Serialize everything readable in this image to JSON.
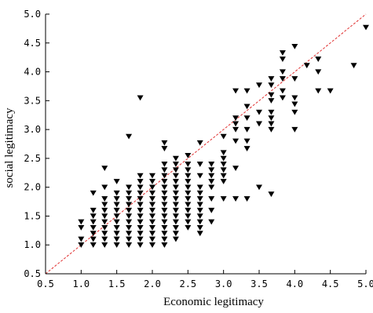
{
  "chart_data": {
    "type": "scatter",
    "xlabel": "Economic legitimacy",
    "ylabel": "social legitimacy",
    "xlim": [
      0.5,
      5.0
    ],
    "ylim": [
      0.5,
      5.0
    ],
    "xticks": [
      "0.5",
      "1.0",
      "1.5",
      "2.0",
      "2.5",
      "3.0",
      "3.5",
      "4.0",
      "4.5",
      "5.0"
    ],
    "yticks": [
      "0.5",
      "1.0",
      "1.5",
      "2.0",
      "2.5",
      "3.0",
      "3.5",
      "4.0",
      "4.5",
      "5.0"
    ],
    "marker": "down-triangle",
    "marker_color": "#000000",
    "reference_line": {
      "from": [
        0.5,
        0.5
      ],
      "to": [
        5.0,
        5.0
      ],
      "style": "dashed",
      "color": "#e03030"
    },
    "grid": false,
    "series": [
      {
        "points": [
          [
            1.0,
            1.0
          ],
          [
            1.0,
            1.1
          ],
          [
            1.0,
            1.3
          ],
          [
            1.0,
            1.4
          ],
          [
            1.17,
            1.0
          ],
          [
            1.17,
            1.1
          ],
          [
            1.17,
            1.2
          ],
          [
            1.17,
            1.3
          ],
          [
            1.17,
            1.4
          ],
          [
            1.17,
            1.5
          ],
          [
            1.17,
            1.6
          ],
          [
            1.17,
            1.9
          ],
          [
            1.33,
            1.0
          ],
          [
            1.33,
            1.1
          ],
          [
            1.33,
            1.2
          ],
          [
            1.33,
            1.3
          ],
          [
            1.33,
            1.4
          ],
          [
            1.33,
            1.5
          ],
          [
            1.33,
            1.6
          ],
          [
            1.33,
            1.7
          ],
          [
            1.33,
            1.8
          ],
          [
            1.33,
            2.0
          ],
          [
            1.33,
            2.33
          ],
          [
            1.5,
            1.0
          ],
          [
            1.5,
            1.1
          ],
          [
            1.5,
            1.2
          ],
          [
            1.5,
            1.3
          ],
          [
            1.5,
            1.4
          ],
          [
            1.5,
            1.5
          ],
          [
            1.5,
            1.6
          ],
          [
            1.5,
            1.7
          ],
          [
            1.5,
            1.8
          ],
          [
            1.5,
            1.9
          ],
          [
            1.5,
            2.1
          ],
          [
            1.67,
            1.0
          ],
          [
            1.67,
            1.1
          ],
          [
            1.67,
            1.2
          ],
          [
            1.67,
            1.3
          ],
          [
            1.67,
            1.4
          ],
          [
            1.67,
            1.5
          ],
          [
            1.67,
            1.6
          ],
          [
            1.67,
            1.7
          ],
          [
            1.67,
            1.8
          ],
          [
            1.67,
            1.9
          ],
          [
            1.67,
            2.0
          ],
          [
            1.67,
            2.88
          ],
          [
            1.83,
            1.0
          ],
          [
            1.83,
            1.1
          ],
          [
            1.83,
            1.2
          ],
          [
            1.83,
            1.3
          ],
          [
            1.83,
            1.4
          ],
          [
            1.83,
            1.5
          ],
          [
            1.83,
            1.6
          ],
          [
            1.83,
            1.7
          ],
          [
            1.83,
            1.8
          ],
          [
            1.83,
            1.9
          ],
          [
            1.83,
            2.0
          ],
          [
            1.83,
            2.1
          ],
          [
            1.83,
            2.2
          ],
          [
            1.83,
            3.55
          ],
          [
            2.0,
            1.0
          ],
          [
            2.0,
            1.1
          ],
          [
            2.0,
            1.2
          ],
          [
            2.0,
            1.3
          ],
          [
            2.0,
            1.4
          ],
          [
            2.0,
            1.5
          ],
          [
            2.0,
            1.6
          ],
          [
            2.0,
            1.7
          ],
          [
            2.0,
            1.8
          ],
          [
            2.0,
            1.9
          ],
          [
            2.0,
            2.0
          ],
          [
            2.0,
            2.1
          ],
          [
            2.0,
            2.2
          ],
          [
            2.17,
            1.0
          ],
          [
            2.17,
            1.1
          ],
          [
            2.17,
            1.2
          ],
          [
            2.17,
            1.3
          ],
          [
            2.17,
            1.4
          ],
          [
            2.17,
            1.5
          ],
          [
            2.17,
            1.6
          ],
          [
            2.17,
            1.7
          ],
          [
            2.17,
            1.8
          ],
          [
            2.17,
            1.9
          ],
          [
            2.17,
            2.0
          ],
          [
            2.17,
            2.1
          ],
          [
            2.17,
            2.2
          ],
          [
            2.17,
            2.3
          ],
          [
            2.17,
            2.4
          ],
          [
            2.17,
            2.67
          ],
          [
            2.17,
            2.77
          ],
          [
            2.33,
            1.1
          ],
          [
            2.33,
            1.2
          ],
          [
            2.33,
            1.3
          ],
          [
            2.33,
            1.4
          ],
          [
            2.33,
            1.5
          ],
          [
            2.33,
            1.6
          ],
          [
            2.33,
            1.7
          ],
          [
            2.33,
            1.8
          ],
          [
            2.33,
            1.9
          ],
          [
            2.33,
            2.0
          ],
          [
            2.33,
            2.1
          ],
          [
            2.33,
            2.2
          ],
          [
            2.33,
            2.3
          ],
          [
            2.33,
            2.4
          ],
          [
            2.33,
            2.5
          ],
          [
            2.5,
            1.3
          ],
          [
            2.5,
            1.4
          ],
          [
            2.5,
            1.5
          ],
          [
            2.5,
            1.6
          ],
          [
            2.5,
            1.7
          ],
          [
            2.5,
            1.8
          ],
          [
            2.5,
            1.9
          ],
          [
            2.5,
            2.0
          ],
          [
            2.5,
            2.1
          ],
          [
            2.5,
            2.2
          ],
          [
            2.5,
            2.3
          ],
          [
            2.5,
            2.4
          ],
          [
            2.5,
            2.55
          ],
          [
            2.67,
            1.2
          ],
          [
            2.67,
            1.3
          ],
          [
            2.67,
            1.4
          ],
          [
            2.67,
            1.5
          ],
          [
            2.67,
            1.6
          ],
          [
            2.67,
            1.7
          ],
          [
            2.67,
            1.8
          ],
          [
            2.67,
            1.9
          ],
          [
            2.67,
            2.0
          ],
          [
            2.67,
            2.2
          ],
          [
            2.67,
            2.4
          ],
          [
            2.67,
            2.77
          ],
          [
            2.83,
            1.4
          ],
          [
            2.83,
            1.6
          ],
          [
            2.83,
            1.8
          ],
          [
            2.83,
            2.0
          ],
          [
            2.83,
            2.1
          ],
          [
            2.83,
            2.2
          ],
          [
            2.83,
            2.3
          ],
          [
            2.83,
            2.4
          ],
          [
            3.0,
            1.8
          ],
          [
            3.0,
            2.1
          ],
          [
            3.0,
            2.2
          ],
          [
            3.0,
            2.3
          ],
          [
            3.0,
            2.4
          ],
          [
            3.0,
            2.5
          ],
          [
            3.0,
            2.6
          ],
          [
            3.0,
            2.88
          ],
          [
            3.17,
            1.8
          ],
          [
            3.17,
            2.33
          ],
          [
            3.17,
            2.8
          ],
          [
            3.17,
            3.0
          ],
          [
            3.17,
            3.1
          ],
          [
            3.17,
            3.2
          ],
          [
            3.17,
            3.67
          ],
          [
            3.33,
            1.8
          ],
          [
            3.33,
            2.67
          ],
          [
            3.33,
            2.8
          ],
          [
            3.33,
            3.0
          ],
          [
            3.33,
            3.2
          ],
          [
            3.33,
            3.4
          ],
          [
            3.33,
            3.67
          ],
          [
            3.5,
            2.0
          ],
          [
            3.5,
            3.1
          ],
          [
            3.5,
            3.3
          ],
          [
            3.5,
            3.77
          ],
          [
            3.67,
            1.88
          ],
          [
            3.67,
            3.0
          ],
          [
            3.67,
            3.1
          ],
          [
            3.67,
            3.2
          ],
          [
            3.67,
            3.3
          ],
          [
            3.67,
            3.5
          ],
          [
            3.67,
            3.6
          ],
          [
            3.67,
            3.77
          ],
          [
            3.67,
            3.88
          ],
          [
            3.83,
            3.55
          ],
          [
            3.83,
            3.67
          ],
          [
            3.83,
            3.88
          ],
          [
            3.83,
            4.0
          ],
          [
            3.83,
            4.22
          ],
          [
            3.83,
            4.33
          ],
          [
            4.0,
            3.0
          ],
          [
            4.0,
            3.3
          ],
          [
            4.0,
            3.44
          ],
          [
            4.0,
            3.55
          ],
          [
            4.0,
            3.88
          ],
          [
            4.0,
            4.44
          ],
          [
            4.17,
            4.11
          ],
          [
            4.33,
            3.67
          ],
          [
            4.33,
            4.0
          ],
          [
            4.33,
            4.22
          ],
          [
            4.5,
            3.67
          ],
          [
            4.83,
            4.11
          ],
          [
            5.0,
            4.77
          ]
        ]
      }
    ]
  }
}
